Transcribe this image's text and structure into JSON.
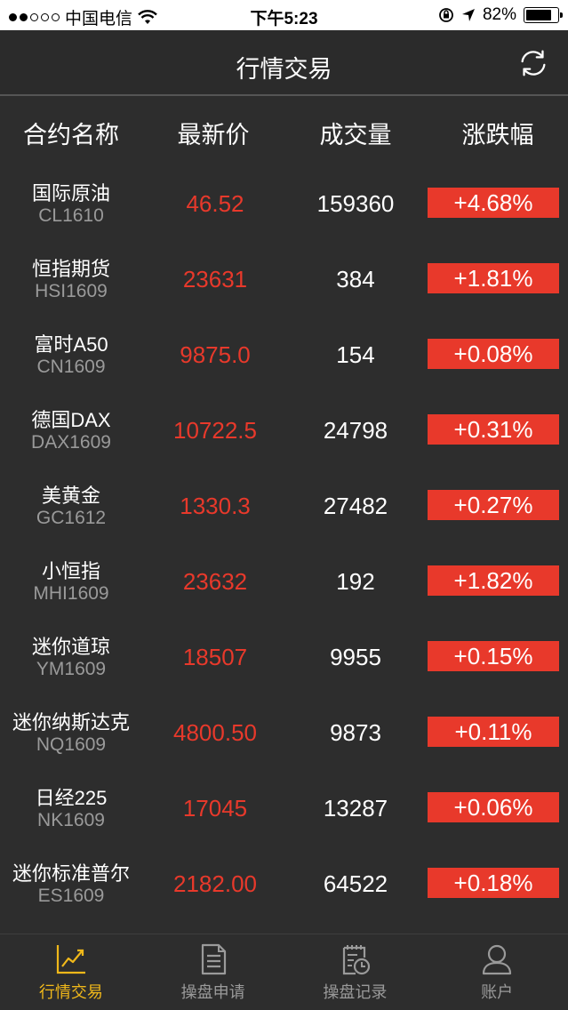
{
  "status_bar": {
    "carrier": "中国电信",
    "time": "下午5:23",
    "battery": "82%",
    "battery_level": 0.82
  },
  "header": {
    "title": "行情交易",
    "refresh_icon": "refresh-icon"
  },
  "columns": {
    "name": "合约名称",
    "price": "最新价",
    "volume": "成交量",
    "change": "涨跌幅"
  },
  "rows": [
    {
      "name": "国际原油",
      "code": "CL1610",
      "price": "46.52",
      "volume": "159360",
      "change": "+4.68%"
    },
    {
      "name": "恒指期货",
      "code": "HSI1609",
      "price": "23631",
      "volume": "384",
      "change": "+1.81%"
    },
    {
      "name": "富时A50",
      "code": "CN1609",
      "price": "9875.0",
      "volume": "154",
      "change": "+0.08%"
    },
    {
      "name": "德国DAX",
      "code": "DAX1609",
      "price": "10722.5",
      "volume": "24798",
      "change": "+0.31%"
    },
    {
      "name": "美黄金",
      "code": "GC1612",
      "price": "1330.3",
      "volume": "27482",
      "change": "+0.27%"
    },
    {
      "name": "小恒指",
      "code": "MHI1609",
      "price": "23632",
      "volume": "192",
      "change": "+1.82%"
    },
    {
      "name": "迷你道琼",
      "code": "YM1609",
      "price": "18507",
      "volume": "9955",
      "change": "+0.15%"
    },
    {
      "name": "迷你纳斯达克",
      "code": "NQ1609",
      "price": "4800.50",
      "volume": "9873",
      "change": "+0.11%"
    },
    {
      "name": "日经225",
      "code": "NK1609",
      "price": "17045",
      "volume": "13287",
      "change": "+0.06%"
    },
    {
      "name": "迷你标准普尔",
      "code": "ES1609",
      "price": "2182.00",
      "volume": "64522",
      "change": "+0.18%"
    }
  ],
  "tabs": [
    {
      "label": "行情交易",
      "icon": "trend-chart-icon",
      "active": true
    },
    {
      "label": "操盘申请",
      "icon": "document-icon",
      "active": false
    },
    {
      "label": "操盘记录",
      "icon": "record-clock-icon",
      "active": false
    },
    {
      "label": "账户",
      "icon": "user-icon",
      "active": false
    }
  ],
  "colors": {
    "accent_red": "#e8392b",
    "active_tab": "#f0b81a",
    "background": "#2d2d2d"
  }
}
